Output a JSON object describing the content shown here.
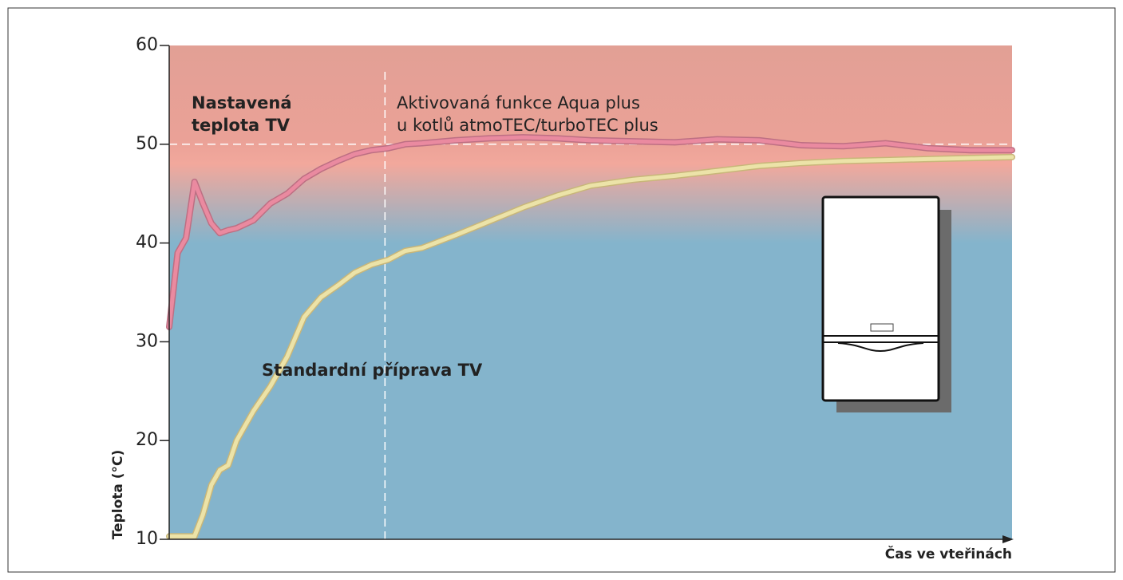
{
  "chart_data": {
    "type": "line",
    "x_label": "Čas ve vteřinách",
    "y_label": "Teplota (°C)",
    "xlim": [
      0,
      100
    ],
    "ylim": [
      10,
      60
    ],
    "yticks": [
      10,
      20,
      30,
      40,
      50,
      60
    ],
    "setpoint": 50,
    "activation_x": 25.6,
    "annotations": [
      {
        "lines": [
          "Nastavená",
          "teplota TV"
        ]
      },
      {
        "lines": [
          "Aktivovaná funkce Aqua plus",
          "u kotlů atmoTEC/turboTEC plus"
        ]
      },
      {
        "lines": [
          "Standardní příprava TV"
        ]
      }
    ],
    "x": [
      0,
      1,
      2,
      3,
      4,
      5,
      6,
      7,
      8,
      10,
      12,
      14,
      16,
      18,
      20,
      22,
      24,
      26,
      28,
      30,
      34,
      38,
      42,
      46,
      50,
      55,
      60,
      65,
      70,
      75,
      80,
      85,
      90,
      95,
      100
    ],
    "series": [
      {
        "color": "#ea8aa0",
        "values": [
          31.5,
          39,
          40.5,
          46.2,
          44,
          42,
          41,
          41.3,
          41.5,
          42.3,
          44,
          45,
          46.5,
          47.5,
          48.3,
          49,
          49.4,
          49.6,
          50,
          50.1,
          50.4,
          50.6,
          50.7,
          50.6,
          50.4,
          50.3,
          50.2,
          50.5,
          50.4,
          49.9,
          49.8,
          50.1,
          49.6,
          49.4,
          49.4
        ]
      },
      {
        "color": "#ece3a8",
        "values": [
          10.3,
          10.3,
          10.3,
          10.3,
          12.5,
          15.5,
          17,
          17.5,
          20,
          23,
          25.5,
          28.5,
          32.5,
          34.5,
          35.7,
          37,
          37.8,
          38.3,
          39.2,
          39.5,
          40.8,
          42.2,
          43.6,
          44.8,
          45.8,
          46.4,
          46.8,
          47.3,
          47.8,
          48.1,
          48.3,
          48.4,
          48.5,
          48.6,
          48.7
        ]
      }
    ]
  }
}
